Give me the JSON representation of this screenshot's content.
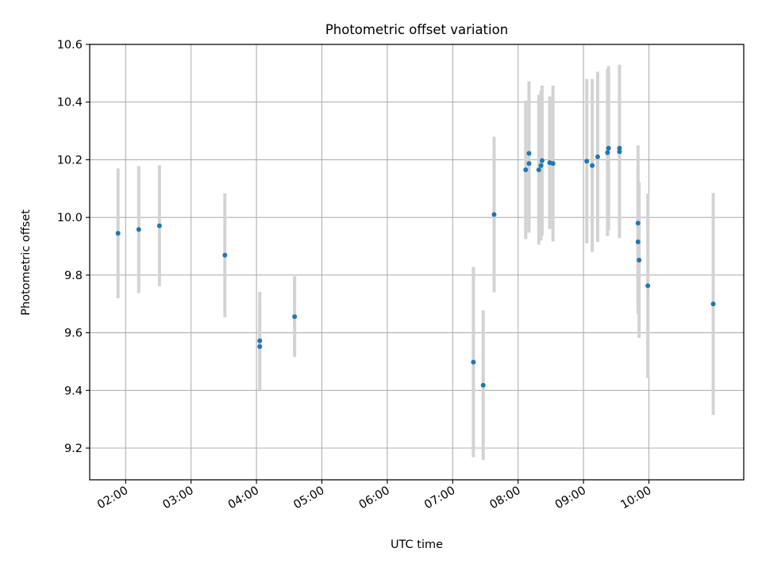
{
  "chart_data": {
    "type": "scatter",
    "title": "Photometric offset variation",
    "xlabel": "UTC time",
    "ylabel": "Photometric offset",
    "xlim": [
      "01:27",
      "11:27"
    ],
    "ylim": [
      9.09,
      10.6
    ],
    "x_ticks": [
      "02:00",
      "03:00",
      "04:00",
      "05:00",
      "06:00",
      "07:00",
      "08:00",
      "09:00",
      "10:00"
    ],
    "y_ticks": [
      9.2,
      9.4,
      9.6,
      9.8,
      10.0,
      10.2,
      10.4,
      10.6
    ],
    "grid": true,
    "colors": {
      "points": "#1f77b4",
      "errorbars": "#d3d3d3",
      "grid": "#b0b0b0"
    },
    "points": [
      {
        "x": "01:53",
        "y": 9.945,
        "err": 0.225
      },
      {
        "x": "02:12",
        "y": 9.958,
        "err": 0.22
      },
      {
        "x": "02:31",
        "y": 9.971,
        "err": 0.21
      },
      {
        "x": "03:31",
        "y": 9.869,
        "err": 0.215
      },
      {
        "x": "04:03",
        "y": 9.572,
        "err": 0.17
      },
      {
        "x": "04:03",
        "y": 9.552,
        "err": 0.15
      },
      {
        "x": "04:35",
        "y": 9.656,
        "err": 0.14
      },
      {
        "x": "07:19",
        "y": 9.498,
        "err": 0.33
      },
      {
        "x": "07:28",
        "y": 9.418,
        "err": 0.26
      },
      {
        "x": "07:38",
        "y": 10.01,
        "err": 0.27
      },
      {
        "x": "08:07",
        "y": 10.165,
        "err": 0.24
      },
      {
        "x": "08:10",
        "y": 10.222,
        "err": 0.25
      },
      {
        "x": "08:10",
        "y": 10.187,
        "err": 0.24
      },
      {
        "x": "08:19",
        "y": 10.165,
        "err": 0.26
      },
      {
        "x": "08:21",
        "y": 10.18,
        "err": 0.26
      },
      {
        "x": "08:22",
        "y": 10.197,
        "err": 0.26
      },
      {
        "x": "08:29",
        "y": 10.19,
        "err": 0.23
      },
      {
        "x": "08:32",
        "y": 10.187,
        "err": 0.27
      },
      {
        "x": "09:03",
        "y": 10.195,
        "err": 0.285
      },
      {
        "x": "09:08",
        "y": 10.18,
        "err": 0.3
      },
      {
        "x": "09:13",
        "y": 10.21,
        "err": 0.295
      },
      {
        "x": "09:22",
        "y": 10.225,
        "err": 0.29
      },
      {
        "x": "09:23",
        "y": 10.24,
        "err": 0.285
      },
      {
        "x": "09:33",
        "y": 10.24,
        "err": 0.29
      },
      {
        "x": "09:33",
        "y": 10.228,
        "err": 0.3
      },
      {
        "x": "09:50",
        "y": 9.98,
        "err": 0.27
      },
      {
        "x": "09:50",
        "y": 9.915,
        "err": 0.25
      },
      {
        "x": "09:51",
        "y": 9.852,
        "err": 0.27
      },
      {
        "x": "09:59",
        "y": 9.763,
        "err": 0.32
      },
      {
        "x": "10:59",
        "y": 9.7,
        "err": 0.385
      }
    ]
  }
}
